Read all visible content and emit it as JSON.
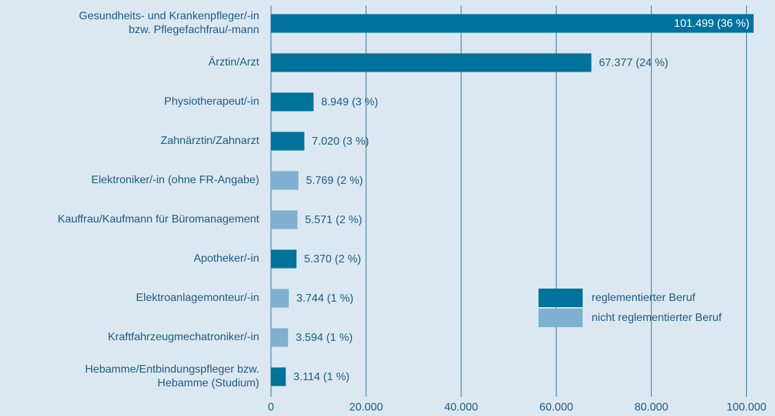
{
  "chart_data": {
    "type": "barh",
    "categories": [
      "Gesundheits- und Krankenpfleger/-in\nbzw. Pflegefachfrau/-mann",
      "Ärztin/Arzt",
      "Physiotherapeut/-in",
      "Zahnärztin/Zahnarzt",
      "Elektroniker/-in (ohne FR-Angabe)",
      "Kauffrau/Kaufmann für Büromanagement",
      "Apotheker/-in",
      "Elektroanlagemonteur/-in",
      "Kraftfahrzeugmechatroniker/-in",
      "Hebamme/Entbindungspfleger bzw.\nHebamme (Studium)"
    ],
    "values": [
      101499,
      67377,
      8949,
      7020,
      5769,
      5571,
      5370,
      3744,
      3594,
      3114
    ],
    "value_labels": [
      "101.499 (36 %)",
      "67.377 (24 %)",
      "8.949 (3 %)",
      "7.020 (3 %)",
      "5.769 (2 %)",
      "5.571 (2 %)",
      "5.370 (2 %)",
      "3.744 (1 %)",
      "3.594 (1 %)",
      "3.114 (1 %)"
    ],
    "bar_colors": [
      "#00739c",
      "#00739c",
      "#00739c",
      "#00739c",
      "#7fb0cf",
      "#7fb0cf",
      "#00739c",
      "#7fb0cf",
      "#7fb0cf",
      "#00739c"
    ],
    "legend": [
      {
        "name": "reglementierter Beruf",
        "color": "#00739c"
      },
      {
        "name": "nicht reglementierter Beruf",
        "color": "#7fb0cf"
      }
    ],
    "xlim": [
      0,
      106000
    ],
    "xticks": [
      {
        "value": 0,
        "label": "0"
      },
      {
        "value": 20000,
        "label": "20.000"
      },
      {
        "value": 40000,
        "label": "40.000"
      },
      {
        "value": 60000,
        "label": "60.000"
      },
      {
        "value": 80000,
        "label": "80.000"
      },
      {
        "value": 100000,
        "label": "100.000"
      }
    ],
    "grid": true
  }
}
